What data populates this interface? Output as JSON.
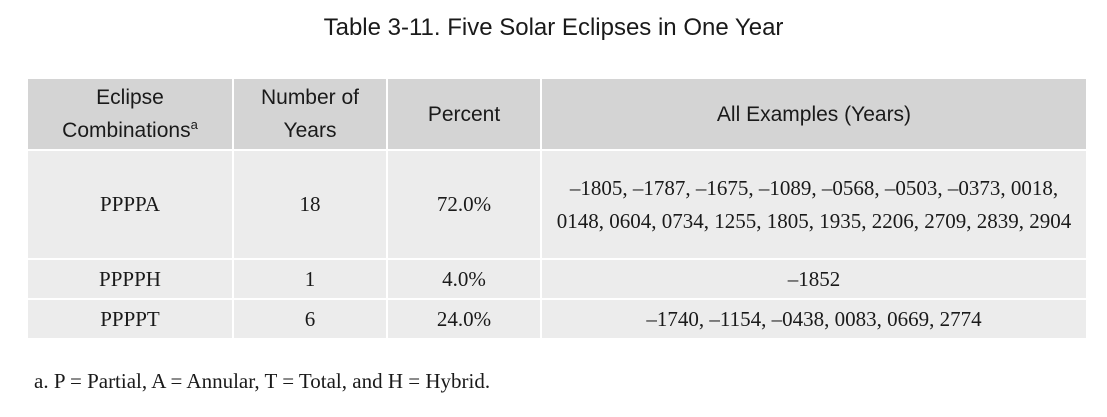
{
  "title": "Table 3-11. Five Solar Eclipses in One Year",
  "table": {
    "headers": {
      "eclipse_combinations": "Eclipse Combinations",
      "eclipse_combinations_footnote_mark": "a",
      "number_of_years": "Number of Years",
      "percent": "Percent",
      "all_examples": "All Examples (Years)"
    },
    "rows": [
      {
        "combination": "PPPPA",
        "years": "18",
        "percent": "72.0%",
        "examples": "–1805, –1787, –1675, –1089, –0568, –0503, –0373, 0018, 0148, 0604, 0734, 1255, 1805, 1935, 2206, 2709, 2839, 2904"
      },
      {
        "combination": "PPPPH",
        "years": "1",
        "percent": "4.0%",
        "examples": "–1852"
      },
      {
        "combination": "PPPPT",
        "years": "6",
        "percent": "24.0%",
        "examples": "–1740, –1154, –0438, 0083, 0669, 2774"
      }
    ]
  },
  "footnote": "a. P = Partial, A = Annular, T = Total, and H = Hybrid."
}
